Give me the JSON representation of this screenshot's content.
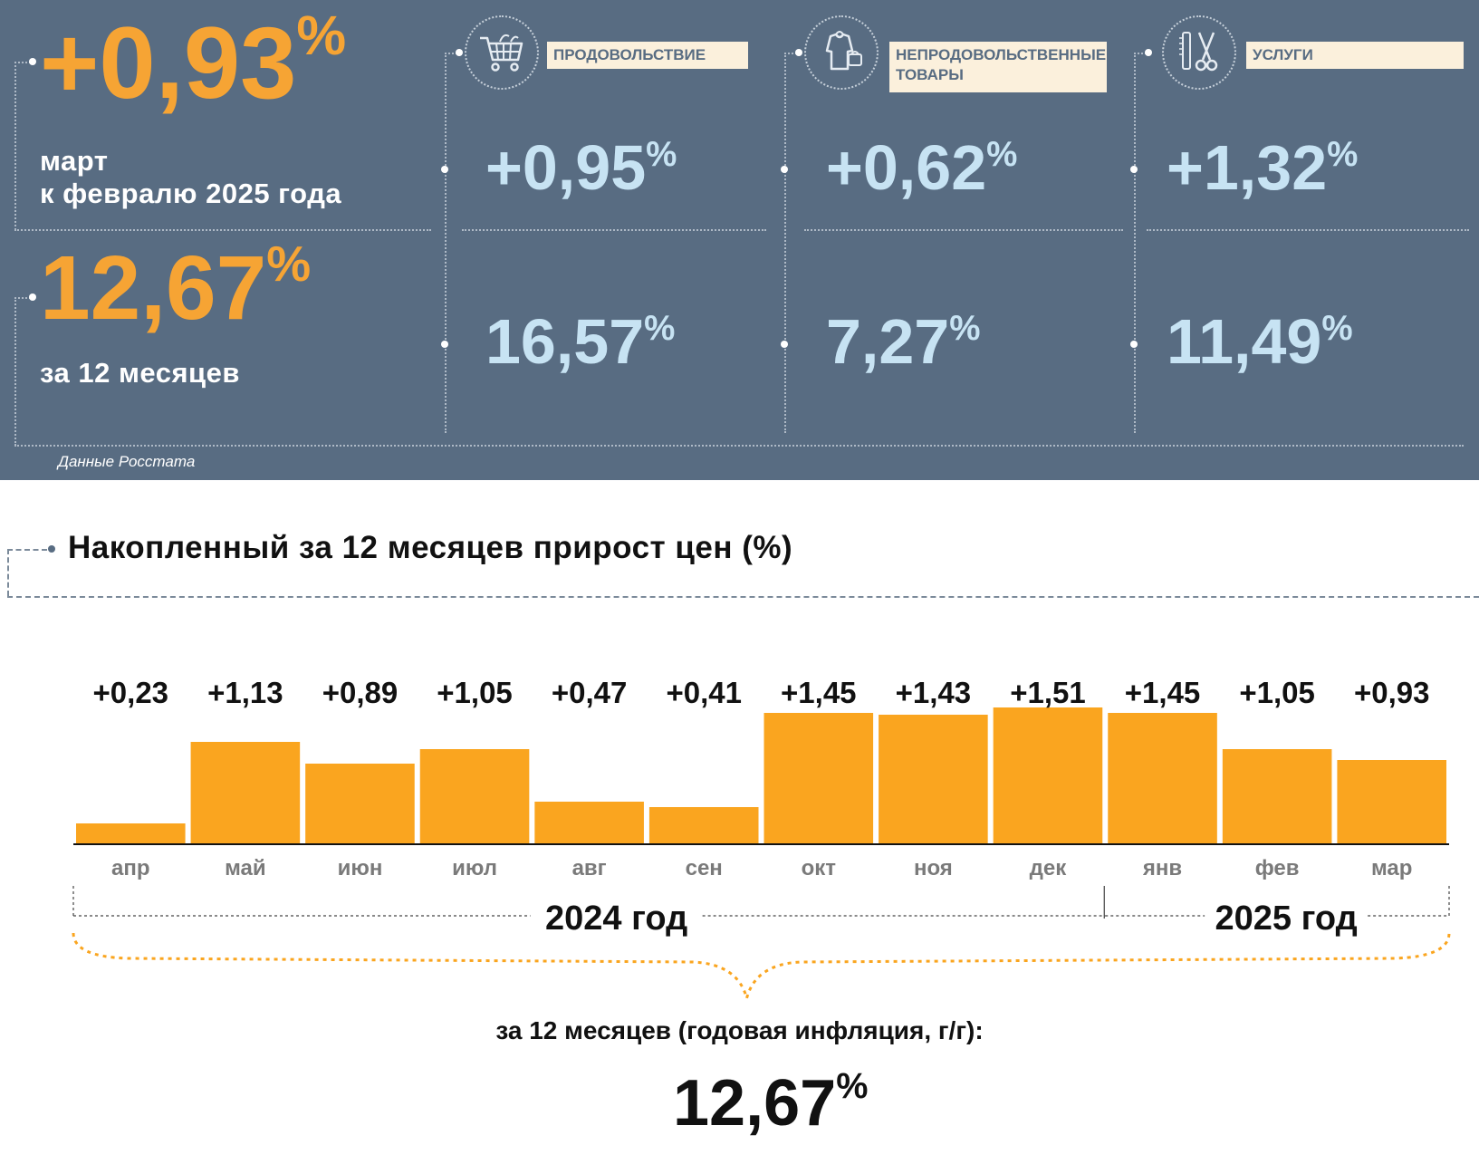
{
  "summary": {
    "monthly_value": "+0,93",
    "monthly_label_1": "март",
    "monthly_label_2": "к февралю 2025 года",
    "annual_value": "12,67",
    "annual_label": "за 12 месяцев",
    "percent_sign": "%",
    "source": "Данные Росстата"
  },
  "categories": [
    {
      "label_1": "ПРОДОВОЛЬСТВИЕ",
      "label_2": "",
      "icon": "shopping-cart-icon",
      "monthly": "+0,95",
      "annual": "16,57"
    },
    {
      "label_1": "НЕПРОДОВОЛЬСТВЕННЫЕ",
      "label_2": "ТОВАРЫ",
      "icon": "clothing-icon",
      "monthly": "+0,62",
      "annual": "7,27"
    },
    {
      "label_1": "УСЛУГИ",
      "label_2": "",
      "icon": "scissors-comb-icon",
      "monthly": "+1,32",
      "annual": "11,49"
    }
  ],
  "colors": {
    "panel": "#586c82",
    "accent_orange": "#f6a434",
    "bar": "#faa51f",
    "light_blue": "#c7e3f3",
    "label_bg": "#fbf0dc"
  },
  "chart_data": {
    "type": "bar",
    "title": "Накопленный за 12 месяцев прирост цен (%)",
    "categories": [
      "апр",
      "май",
      "июн",
      "июл",
      "авг",
      "сен",
      "окт",
      "ноя",
      "дек",
      "янв",
      "фев",
      "мар"
    ],
    "values": [
      0.23,
      1.13,
      0.89,
      1.05,
      0.47,
      0.41,
      1.45,
      1.43,
      1.51,
      1.45,
      1.05,
      0.93
    ],
    "value_labels": [
      "+0,23",
      "+1,13",
      "+0,89",
      "+1,05",
      "+0,47",
      "+0,41",
      "+1,45",
      "+1,43",
      "+1,51",
      "+1,45",
      "+1,05",
      "+0,93"
    ],
    "year_groups": [
      {
        "label": "2024 год",
        "count": 9
      },
      {
        "label": "2025 год",
        "count": 3
      }
    ],
    "total_label": "за 12 месяцев (годовая инфляция, г/г):",
    "total_value": "12,67",
    "grid": false,
    "legend": "none"
  }
}
